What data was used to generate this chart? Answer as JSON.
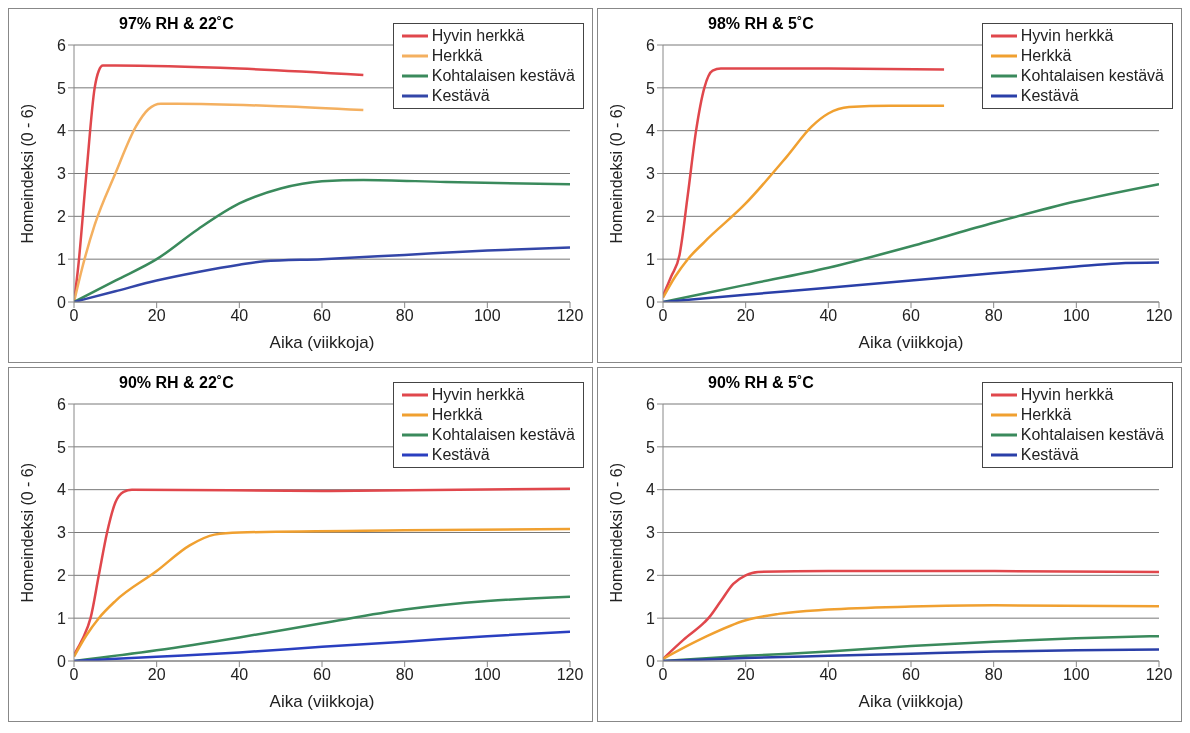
{
  "chart_data": [
    {
      "type": "line",
      "title": "97% RH & 22˚C",
      "xlabel": "Aika (viikkoja)",
      "ylabel": "Homeindeksi (0 - 6)",
      "xlim": [
        0,
        120
      ],
      "xticks": [
        0,
        20,
        40,
        60,
        80,
        100,
        120
      ],
      "ylim": [
        0,
        6
      ],
      "yticks": [
        0,
        1,
        2,
        3,
        4,
        5,
        6
      ],
      "grid": "y",
      "legend": "top right",
      "marker": "none",
      "line_style": "solid",
      "series": [
        {
          "name": "Hyvin herkkä",
          "color": "#e0474c",
          "x": [
            0,
            1,
            3,
            5,
            6,
            7,
            10,
            40,
            70
          ],
          "values": [
            0,
            0.8,
            3,
            5,
            5.4,
            5.52,
            5.52,
            5.45,
            5.3
          ]
        },
        {
          "name": "Herkkä",
          "color": "#f4b060",
          "x": [
            0,
            2,
            5,
            10,
            15,
            18,
            21,
            25,
            50,
            70
          ],
          "values": [
            0,
            0.8,
            1.8,
            3,
            4.1,
            4.5,
            4.63,
            4.63,
            4.57,
            4.48
          ]
        },
        {
          "name": "Kohtalaisen kestävä",
          "color": "#3a8a5c",
          "x": [
            0,
            10,
            20,
            30,
            40,
            50,
            60,
            70,
            90,
            120
          ],
          "values": [
            0,
            0.5,
            1.0,
            1.7,
            2.3,
            2.65,
            2.82,
            2.85,
            2.8,
            2.75
          ]
        },
        {
          "name": "Kestävä",
          "color": "#3346a8",
          "x": [
            0,
            10,
            20,
            30,
            40,
            46,
            60,
            80,
            100,
            120
          ],
          "values": [
            0,
            0.25,
            0.5,
            0.7,
            0.87,
            0.95,
            1.0,
            1.1,
            1.2,
            1.27
          ]
        }
      ]
    },
    {
      "type": "line",
      "title": "98% RH & 5˚C",
      "xlabel": "Aika (viikkoja)",
      "ylabel": "Homeindeksi (0 - 6)",
      "xlim": [
        0,
        120
      ],
      "xticks": [
        0,
        20,
        40,
        60,
        80,
        100,
        120
      ],
      "ylim": [
        0,
        6
      ],
      "yticks": [
        0,
        1,
        2,
        3,
        4,
        5,
        6
      ],
      "grid": "y",
      "legend": "top right",
      "marker": "none",
      "line_style": "solid",
      "series": [
        {
          "name": "Hyvin herkkä",
          "color": "#e0474c",
          "x": [
            0,
            2,
            4,
            6,
            8,
            10,
            12,
            14,
            40,
            68
          ],
          "values": [
            0.15,
            0.6,
            1.1,
            2.5,
            4,
            5,
            5.4,
            5.45,
            5.45,
            5.43
          ]
        },
        {
          "name": "Herkkä",
          "color": "#f0a030",
          "x": [
            0,
            3,
            6,
            10,
            20,
            30,
            36,
            40,
            45,
            55,
            68
          ],
          "values": [
            0.1,
            0.6,
            1.0,
            1.4,
            2.3,
            3.4,
            4.1,
            4.4,
            4.55,
            4.58,
            4.58
          ]
        },
        {
          "name": "Kohtalaisen kestävä",
          "color": "#3a8a5c",
          "x": [
            0,
            20,
            40,
            60,
            80,
            100,
            120
          ],
          "values": [
            0,
            0.4,
            0.8,
            1.3,
            1.85,
            2.35,
            2.75
          ]
        },
        {
          "name": "Kestävä",
          "color": "#2a3fa8",
          "x": [
            0,
            20,
            40,
            60,
            80,
            100,
            110,
            120
          ],
          "values": [
            0,
            0.17,
            0.33,
            0.5,
            0.67,
            0.83,
            0.9,
            0.92
          ]
        }
      ]
    },
    {
      "type": "line",
      "title": "90% RH & 22˚C",
      "xlabel": "Aika (viikkoja)",
      "ylabel": "Homeindeksi (0 - 6)",
      "xlim": [
        0,
        120
      ],
      "xticks": [
        0,
        20,
        40,
        60,
        80,
        100,
        120
      ],
      "ylim": [
        0,
        6
      ],
      "yticks": [
        0,
        1,
        2,
        3,
        4,
        5,
        6
      ],
      "grid": "y",
      "legend": "top right",
      "marker": "none",
      "line_style": "solid",
      "series": [
        {
          "name": "Hyvin herkkä",
          "color": "#e0474c",
          "x": [
            0,
            2,
            4,
            6,
            8,
            10,
            12,
            14,
            60,
            120
          ],
          "values": [
            0.15,
            0.5,
            1.0,
            2,
            3,
            3.7,
            3.95,
            4.0,
            3.97,
            4.02
          ]
        },
        {
          "name": "Herkkä",
          "color": "#f0a030",
          "x": [
            0,
            3,
            6,
            10,
            20,
            28,
            34,
            40,
            80,
            120
          ],
          "values": [
            0.1,
            0.6,
            1.0,
            1.4,
            2.1,
            2.7,
            2.95,
            3.0,
            3.05,
            3.08
          ]
        },
        {
          "name": "Kohtalaisen kestävä",
          "color": "#3a8a5c",
          "x": [
            0,
            20,
            40,
            60,
            80,
            100,
            120
          ],
          "values": [
            0,
            0.25,
            0.55,
            0.88,
            1.2,
            1.4,
            1.5
          ]
        },
        {
          "name": "Kestävä",
          "color": "#2a3fc0",
          "x": [
            0,
            20,
            40,
            60,
            80,
            100,
            120
          ],
          "values": [
            0,
            0.1,
            0.2,
            0.33,
            0.45,
            0.58,
            0.68
          ]
        }
      ]
    },
    {
      "type": "line",
      "title": "90% RH & 5˚C",
      "xlabel": "Aika (viikkoja)",
      "ylabel": "Homeindeksi (0 - 6)",
      "xlim": [
        0,
        120
      ],
      "xticks": [
        0,
        20,
        40,
        60,
        80,
        100,
        120
      ],
      "ylim": [
        0,
        6
      ],
      "yticks": [
        0,
        1,
        2,
        3,
        4,
        5,
        6
      ],
      "grid": "y",
      "legend": "top right",
      "marker": "none",
      "line_style": "solid",
      "series": [
        {
          "name": "Hyvin herkkä",
          "color": "#e0474c",
          "x": [
            0,
            5,
            10,
            11,
            14,
            17,
            20,
            23,
            40,
            80,
            120
          ],
          "values": [
            0.05,
            0.5,
            0.9,
            1.0,
            1.4,
            1.8,
            2.0,
            2.08,
            2.1,
            2.1,
            2.08
          ]
        },
        {
          "name": "Herkkä",
          "color": "#f0a030",
          "x": [
            0,
            10,
            20,
            28,
            40,
            60,
            80,
            120
          ],
          "values": [
            0.05,
            0.55,
            0.95,
            1.1,
            1.2,
            1.27,
            1.3,
            1.28
          ]
        },
        {
          "name": "Kohtalaisen kestävä",
          "color": "#3a8a5c",
          "x": [
            0,
            20,
            40,
            60,
            80,
            100,
            120
          ],
          "values": [
            0,
            0.12,
            0.22,
            0.35,
            0.45,
            0.53,
            0.58
          ]
        },
        {
          "name": "Kestävä",
          "color": "#2a3fa8",
          "x": [
            0,
            20,
            40,
            60,
            80,
            100,
            120
          ],
          "values": [
            0,
            0.07,
            0.12,
            0.17,
            0.22,
            0.25,
            0.27
          ]
        }
      ]
    }
  ]
}
